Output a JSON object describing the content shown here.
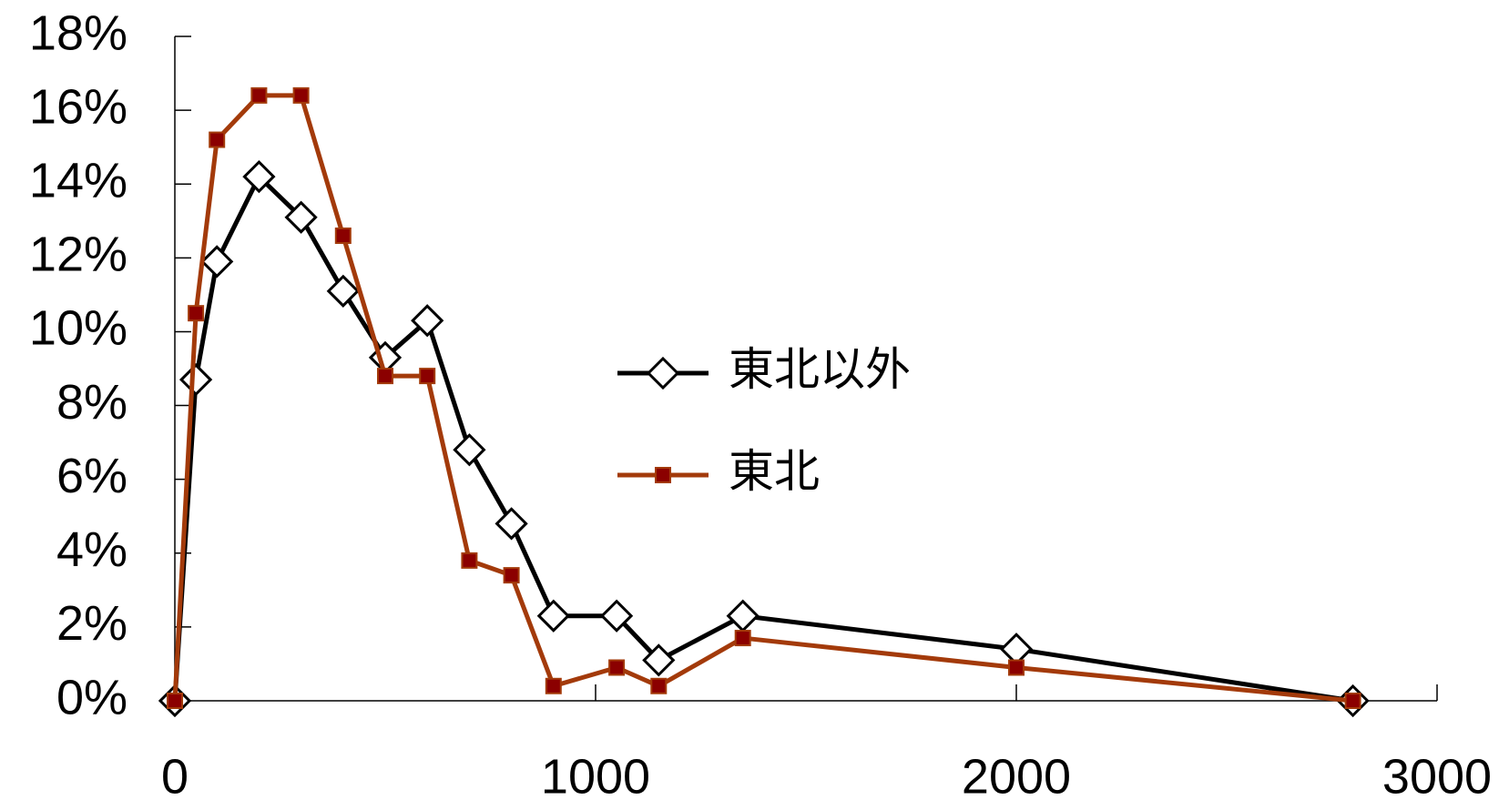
{
  "chart_data": {
    "type": "line",
    "title": "",
    "xlabel": "",
    "ylabel": "",
    "xlim": [
      0,
      3000
    ],
    "ylim": [
      0,
      18
    ],
    "x_ticks": [
      "0",
      "1000",
      "2000",
      "3000"
    ],
    "y_ticks": [
      "0%",
      "2%",
      "4%",
      "6%",
      "8%",
      "10%",
      "12%",
      "14%",
      "16%",
      "18%"
    ],
    "grid": false,
    "legend_position": "center-right",
    "series": [
      {
        "name": "東北以外",
        "color": "#000000",
        "marker": "diamond-open",
        "points": [
          {
            "x": 0,
            "y": 0
          },
          {
            "x": 50,
            "y": 8.7
          },
          {
            "x": 100,
            "y": 11.9
          },
          {
            "x": 200,
            "y": 14.2
          },
          {
            "x": 300,
            "y": 13.1
          },
          {
            "x": 400,
            "y": 11.1
          },
          {
            "x": 500,
            "y": 9.3
          },
          {
            "x": 600,
            "y": 10.3
          },
          {
            "x": 700,
            "y": 6.8
          },
          {
            "x": 800,
            "y": 4.8
          },
          {
            "x": 900,
            "y": 2.3
          },
          {
            "x": 1050,
            "y": 2.3
          },
          {
            "x": 1150,
            "y": 1.1
          },
          {
            "x": 1350,
            "y": 2.3
          },
          {
            "x": 2000,
            "y": 1.4
          },
          {
            "x": 2800,
            "y": 0
          }
        ]
      },
      {
        "name": "東北",
        "color": "#a33a0a",
        "marker_fill": "#8b0000",
        "marker": "square-filled",
        "points": [
          {
            "x": 0,
            "y": 0
          },
          {
            "x": 50,
            "y": 10.5
          },
          {
            "x": 100,
            "y": 15.2
          },
          {
            "x": 200,
            "y": 16.4
          },
          {
            "x": 300,
            "y": 16.4
          },
          {
            "x": 400,
            "y": 12.6
          },
          {
            "x": 500,
            "y": 8.8
          },
          {
            "x": 600,
            "y": 8.8
          },
          {
            "x": 700,
            "y": 3.8
          },
          {
            "x": 800,
            "y": 3.4
          },
          {
            "x": 900,
            "y": 0.4
          },
          {
            "x": 1050,
            "y": 0.9
          },
          {
            "x": 1150,
            "y": 0.4
          },
          {
            "x": 1350,
            "y": 1.7
          },
          {
            "x": 2000,
            "y": 0.9
          },
          {
            "x": 2800,
            "y": 0
          }
        ]
      }
    ]
  }
}
